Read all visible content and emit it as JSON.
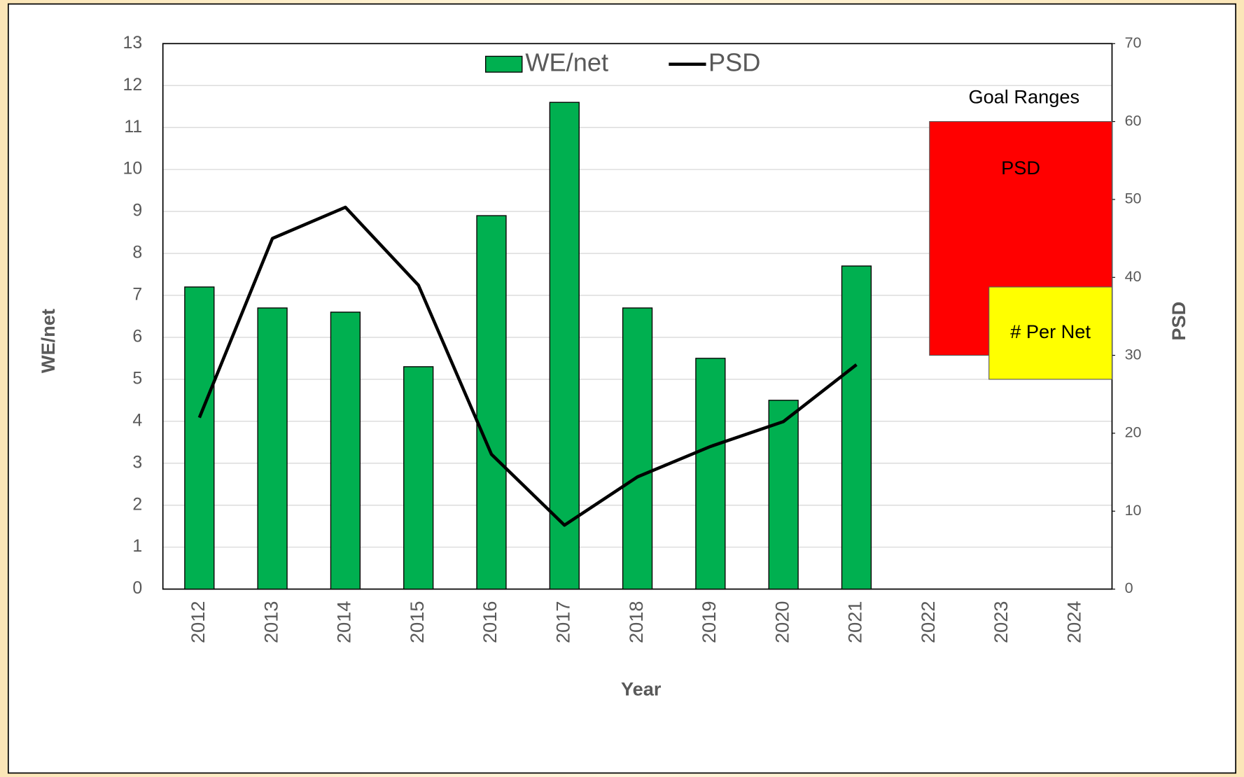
{
  "chart_data": {
    "type": "bar_line",
    "categories": [
      "2012",
      "2013",
      "2014",
      "2015",
      "2016",
      "2017",
      "2018",
      "2019",
      "2020",
      "2021",
      "2022",
      "2023",
      "2024"
    ],
    "series": [
      {
        "name": "WE/net",
        "type": "bar",
        "color": "#00b050",
        "axis": "y",
        "values": [
          7.2,
          6.7,
          6.6,
          5.3,
          8.9,
          11.6,
          6.7,
          5.5,
          4.5,
          7.7,
          null,
          null,
          null
        ]
      },
      {
        "name": "PSD",
        "type": "line",
        "color": "#000000",
        "axis": "y2",
        "values": [
          22,
          45,
          49,
          39,
          17.3,
          8.2,
          14.4,
          18.3,
          21.5,
          28.8,
          null,
          null,
          null
        ]
      }
    ],
    "xlabel": "Year",
    "ylabel": "WE/net",
    "y2label": "PSD",
    "ylim": [
      0,
      13
    ],
    "yticks": [
      0,
      1,
      2,
      3,
      4,
      5,
      6,
      7,
      8,
      9,
      10,
      11,
      12,
      13
    ],
    "y2lim": [
      0,
      70
    ],
    "y2ticks": [
      0,
      10,
      20,
      30,
      40,
      50,
      60,
      70
    ],
    "grid": true,
    "legend": "top",
    "annotation": "Goal Ranges",
    "goal_ranges": [
      {
        "name": "PSD",
        "axis": "y2",
        "low": 30,
        "high": 60,
        "color": "#ff0000"
      },
      {
        "name": "# Per Net",
        "axis": "y",
        "low": 5,
        "high": 7.2,
        "color": "#ffff00"
      }
    ]
  }
}
